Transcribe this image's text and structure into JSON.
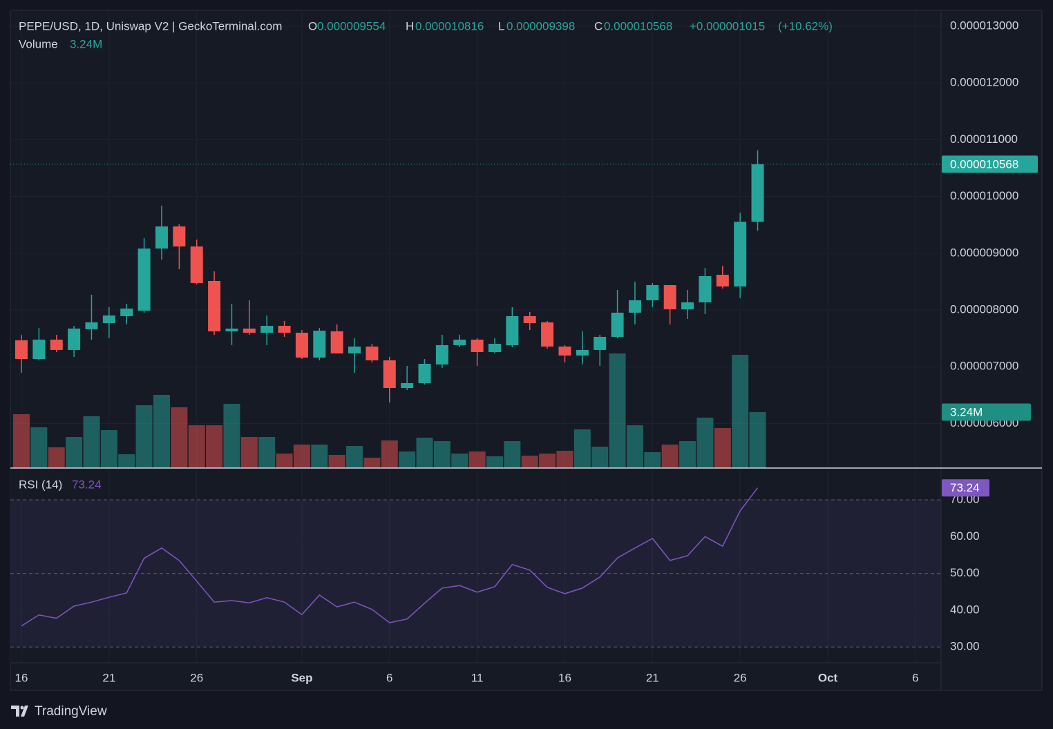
{
  "chart_data": {
    "type": "candlestick",
    "title": "PEPE/USD, 1D, Uniswap V2 | GeckoTerminal.com",
    "ohlc_names": [
      "O",
      "H",
      "L",
      "C"
    ],
    "change": {
      "value": 1.015e-06,
      "label": "+0.000001015"
    },
    "change_pct": {
      "value": 10.62,
      "label": "(+10.62%)"
    },
    "up_color": "#26a69a",
    "down_color": "#ef5350",
    "categories": [
      "16",
      null,
      null,
      null,
      null,
      "21",
      null,
      null,
      null,
      null,
      "26",
      null,
      null,
      null,
      null,
      null,
      "Sep",
      null,
      null,
      null,
      null,
      "6",
      null,
      null,
      null,
      null,
      "11",
      null,
      null,
      null,
      null,
      "16",
      null,
      null,
      null,
      null,
      "21",
      null,
      null,
      null,
      null,
      "26",
      null,
      null,
      null,
      null,
      "Oct",
      null,
      null,
      null,
      null,
      "6"
    ],
    "open": [
      7.465e-06,
      7.136e-06,
      7.477e-06,
      7.295e-06,
      7.66e-06,
      7.769e-06,
      7.891e-06,
      7.988e-06,
      9.083e-06,
      9.472e-06,
      9.119e-06,
      8.511e-06,
      7.623e-06,
      7.672e-06,
      7.599e-06,
      7.72e-06,
      7.599e-06,
      7.161e-06,
      7.623e-06,
      7.234e-06,
      7.355e-06,
      7.112e-06,
      6.625e-06,
      6.711e-06,
      7.039e-06,
      7.38e-06,
      7.477e-06,
      7.258e-06,
      7.38e-06,
      7.891e-06,
      7.781e-06,
      7.355e-06,
      7.197e-06,
      7.295e-06,
      7.526e-06,
      7.952e-06,
      8.17e-06,
      8.438e-06,
      8.012e-06,
      8.134e-06,
      8.62e-06,
      8.414e-06,
      9.554e-06,
      null,
      null,
      null,
      null,
      null,
      null,
      null,
      null,
      null
    ],
    "high": [
      7.562e-06,
      7.684e-06,
      7.562e-06,
      7.72e-06,
      8.268e-06,
      8.049e-06,
      8.11e-06,
      9.265e-06,
      9.837e-06,
      9.509e-06,
      9.241e-06,
      8.681e-06,
      8.11e-06,
      8.17e-06,
      7.903e-06,
      7.806e-06,
      7.647e-06,
      7.684e-06,
      7.745e-06,
      7.501e-06,
      7.404e-06,
      7.173e-06,
      7.015e-06,
      7.136e-06,
      7.562e-06,
      7.562e-06,
      7.501e-06,
      7.501e-06,
      8.049e-06,
      7.964e-06,
      7.806e-06,
      7.38e-06,
      7.623e-06,
      7.562e-06,
      8.353e-06,
      8.499e-06,
      8.475e-06,
      8.438e-06,
      8.353e-06,
      8.742e-06,
      8.779e-06,
      9.715e-06,
      1.0816e-05,
      null,
      null,
      null,
      null,
      null,
      null,
      null,
      null,
      null
    ],
    "low": [
      6.893e-06,
      7.112e-06,
      7.258e-06,
      7.173e-06,
      7.477e-06,
      7.501e-06,
      7.745e-06,
      7.952e-06,
      8.888e-06,
      8.718e-06,
      8.45e-06,
      7.562e-06,
      7.38e-06,
      7.562e-06,
      7.38e-06,
      7.526e-06,
      7.136e-06,
      7.112e-06,
      7.234e-06,
      6.893e-06,
      7.076e-06,
      6.37e-06,
      6.589e-06,
      6.686e-06,
      6.978e-06,
      7.343e-06,
      7.015e-06,
      7.234e-06,
      7.343e-06,
      7.647e-06,
      7.319e-06,
      7.076e-06,
      7.039e-06,
      7.015e-06,
      7.501e-06,
      7.745e-06,
      8.049e-06,
      7.745e-06,
      7.842e-06,
      7.927e-06,
      8.377e-06,
      8.207e-06,
      9.398e-06,
      null,
      null,
      null,
      null,
      null,
      null,
      null,
      null,
      null
    ],
    "close": [
      7.136e-06,
      7.477e-06,
      7.295e-06,
      7.672e-06,
      7.781e-06,
      7.903e-06,
      8.025e-06,
      9.083e-06,
      9.472e-06,
      9.119e-06,
      8.475e-06,
      7.623e-06,
      7.672e-06,
      7.599e-06,
      7.72e-06,
      7.599e-06,
      7.161e-06,
      7.635e-06,
      7.234e-06,
      7.355e-06,
      7.112e-06,
      6.625e-06,
      6.711e-06,
      7.051e-06,
      7.38e-06,
      7.477e-06,
      7.258e-06,
      7.404e-06,
      7.891e-06,
      7.769e-06,
      7.355e-06,
      7.197e-06,
      7.295e-06,
      7.526e-06,
      7.952e-06,
      8.17e-06,
      8.438e-06,
      8.012e-06,
      8.134e-06,
      8.596e-06,
      8.414e-06,
      9.554e-06,
      1.0568e-05,
      null,
      null,
      null,
      null,
      null,
      null,
      null,
      null,
      null
    ],
    "ylim": [
      5.214e-06,
      1.328e-05
    ],
    "yticks": [
      {
        "value": 6e-06,
        "label": "0.000006000"
      },
      {
        "value": 7e-06,
        "label": "0.000007000"
      },
      {
        "value": 8e-06,
        "label": "0.000008000"
      },
      {
        "value": 9e-06,
        "label": "0.000009000"
      },
      {
        "value": 1e-05,
        "label": "0.000010000"
      },
      {
        "value": 1.1e-05,
        "label": "0.000011000"
      },
      {
        "value": 1.2e-05,
        "label": "0.000012000"
      },
      {
        "value": 1.3e-05,
        "label": "0.000013000"
      }
    ],
    "grid": true,
    "volume": {
      "name": "Volume",
      "last_value_label": "3.24M",
      "ylim": [
        0,
        26.52
      ],
      "values": [
        3.12,
        2.36,
        1.2,
        1.8,
        3.0,
        2.2,
        0.8,
        3.64,
        4.24,
        3.52,
        2.48,
        2.48,
        3.72,
        1.8,
        1.8,
        0.84,
        1.36,
        1.36,
        0.76,
        1.28,
        0.6,
        1.6,
        0.96,
        1.76,
        1.56,
        0.84,
        0.96,
        0.68,
        1.56,
        0.72,
        0.84,
        1.0,
        2.24,
        1.24,
        6.64,
        2.48,
        0.92,
        1.36,
        1.56,
        2.92,
        2.32,
        6.56,
        3.24,
        null,
        null,
        null,
        null,
        null,
        null,
        null,
        null,
        null
      ]
    },
    "rsi": {
      "type": "line",
      "name": "RSI (14)",
      "color": "#7e57c2",
      "values": [
        35.7,
        38.7,
        37.8,
        41.1,
        42.2,
        43.5,
        44.7,
        54.1,
        56.9,
        53.5,
        47.9,
        42.2,
        42.6,
        42.0,
        43.4,
        42.2,
        38.8,
        44.1,
        40.9,
        42.2,
        40.2,
        36.6,
        37.6,
        41.9,
        46.0,
        46.7,
        44.9,
        46.4,
        52.4,
        50.9,
        46.2,
        44.5,
        46.0,
        49.0,
        54.2,
        56.9,
        59.5,
        53.5,
        54.8,
        60.0,
        57.4,
        67.0,
        73.24,
        null,
        null,
        null,
        null,
        null,
        null,
        null,
        null,
        null
      ],
      "ylim": [
        25.72,
        78.63
      ],
      "yticks": [
        {
          "value": 30,
          "label": "30.00"
        },
        {
          "value": 40,
          "label": "40.00"
        },
        {
          "value": 50,
          "label": "50.00"
        },
        {
          "value": 60,
          "label": "60.00"
        },
        {
          "value": 70,
          "label": "70.00"
        }
      ]
    },
    "brand": "TradingView"
  }
}
